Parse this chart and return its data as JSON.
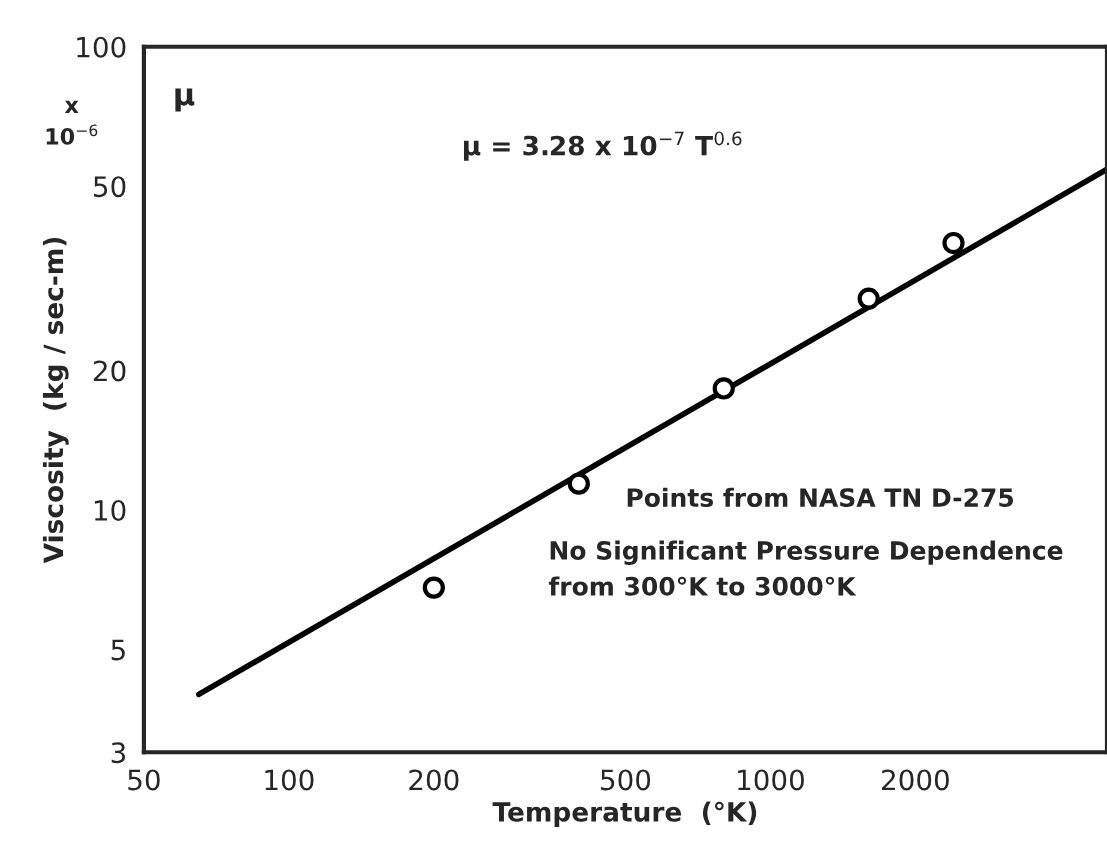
{
  "chart_data": {
    "type": "scatter",
    "xlabel": "Temperature  (°K)",
    "ylabel": "Viscosity  (kg / sec-m)",
    "log": "xy",
    "xlim": [
      50,
      5000
    ],
    "ylim": [
      3,
      100
    ],
    "xticks": [
      50,
      100,
      200,
      500,
      1000,
      2000
    ],
    "yticks": [
      3,
      5,
      10,
      20,
      50,
      100
    ],
    "grid": false,
    "marker": "circle",
    "series": [
      {
        "color": "#000000",
        "x": [
          200,
          400,
          800,
          1600,
          2400
        ],
        "values": [
          6.8,
          11.4,
          18.3,
          28.6,
          37.7
        ]
      },
      {
        "type": "line",
        "color": "#000000",
        "marker": "none",
        "x": [
          65,
          5000
        ],
        "values": [
          4.0,
          54.4
        ]
      }
    ],
    "annotations": [
      "x\n10$^{−6}$",
      "μ",
      "μ = 3.28 x 10$^{−7}$ T$^{0.6}$",
      "Points from NASA TN D-275",
      "No Significant Pressure Dependence\nfrom 300°K to 3000°K"
    ]
  }
}
